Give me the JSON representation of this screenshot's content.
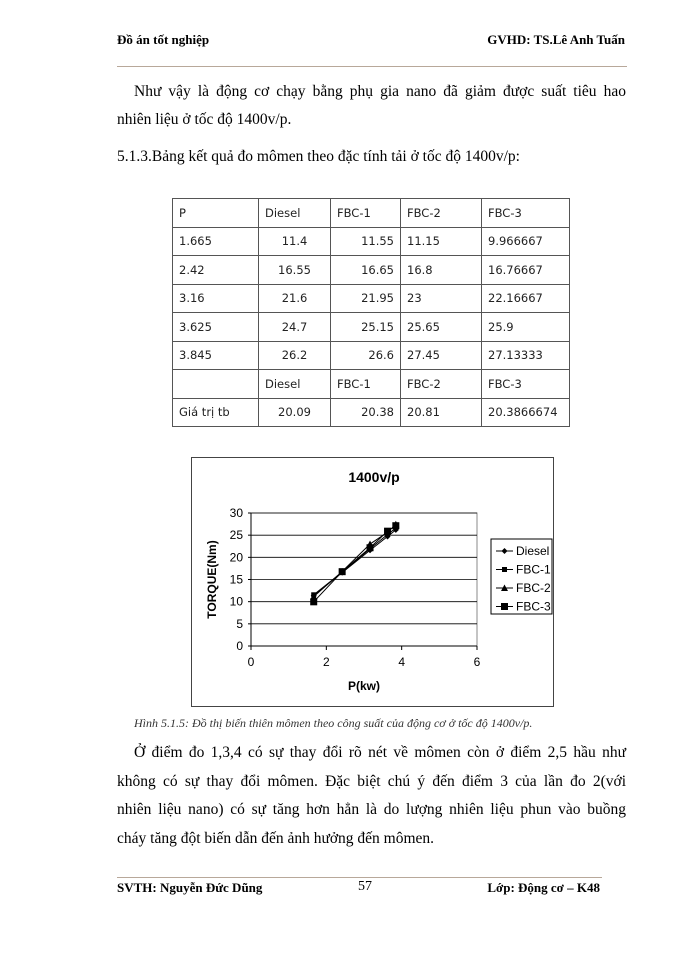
{
  "header": {
    "left": "Đồ án tốt nghiệp",
    "right": "GVHD: TS.Lê Anh Tuấn"
  },
  "intro": {
    "line1": "Như vậy là động cơ chạy bằng phụ gia nano đã giảm được suất tiêu hao",
    "line2": "nhiên liệu ở tốc độ 1400v/p."
  },
  "section_heading": "5.1.3.Bảng kết quả đo mômen theo đặc tính tải ở tốc độ 1400v/p:",
  "table": {
    "header": [
      "P",
      "Diesel",
      "FBC-1",
      "FBC-2",
      "FBC-3"
    ],
    "rows": [
      [
        "1.665",
        "11.4",
        "11.55",
        "11.15",
        "9.966667"
      ],
      [
        "2.42",
        "16.55",
        "16.65",
        "16.8",
        "16.76667"
      ],
      [
        "3.16",
        "21.6",
        "21.95",
        "23",
        "22.16667"
      ],
      [
        "3.625",
        "24.7",
        "25.15",
        "25.65",
        "25.9"
      ],
      [
        "3.845",
        "26.2",
        "26.6",
        "27.45",
        "27.13333"
      ]
    ],
    "avg_header": [
      "",
      "Diesel",
      "FBC-1",
      "FBC-2",
      "FBC-3"
    ],
    "avg_row": [
      "Giá trị tb",
      "20.09",
      "20.38",
      "20.81",
      "20.3866674"
    ]
  },
  "chart_data": {
    "type": "line",
    "title": "1400v/p",
    "xlabel": "P(kw)",
    "ylabel": "TORQUE(Nm)",
    "xlim": [
      0,
      6
    ],
    "ylim": [
      0,
      30
    ],
    "xticks": [
      "0",
      "2",
      "4",
      "6"
    ],
    "yticks": [
      "0",
      "5",
      "10",
      "15",
      "20",
      "25",
      "30"
    ],
    "grid": "horizontal",
    "legend": "right",
    "x": [
      1.665,
      2.42,
      3.16,
      3.625,
      3.845
    ],
    "series": [
      {
        "name": "Diesel",
        "marker": "diamond",
        "values": [
          11.4,
          16.55,
          21.6,
          24.7,
          26.2
        ]
      },
      {
        "name": "FBC-1",
        "marker": "square-small",
        "values": [
          11.55,
          16.65,
          21.95,
          25.15,
          26.6
        ]
      },
      {
        "name": "FBC-2",
        "marker": "triangle",
        "values": [
          11.15,
          16.8,
          23,
          25.65,
          27.45
        ]
      },
      {
        "name": "FBC-3",
        "marker": "square",
        "values": [
          9.966667,
          16.76667,
          22.16667,
          25.9,
          27.13333
        ]
      }
    ]
  },
  "caption": "Hình 5.1.5: Đồ thị biến thiên mômen theo công suất của động cơ ở tốc độ 1400v/p.",
  "body": {
    "line1": "Ở điểm đo 1,3,4 có sự thay đổi rõ nét về mômen còn ở điểm 2,5 hầu như",
    "line2": "không có sự thay đổi mômen. Đặc biệt chú ý đến điểm 3 của lần đo 2(với",
    "line3": "nhiên liệu nano) có sự tăng hơn hẳn là do lượng nhiên liệu phun vào buồng",
    "line4": "cháy tăng đột biến dẫn đến ảnh hưởng đến mômen."
  },
  "footer": {
    "left": "SVTH: Nguyễn Đức Dũng",
    "page": "57",
    "right": "Lớp: Động cơ – K48"
  }
}
